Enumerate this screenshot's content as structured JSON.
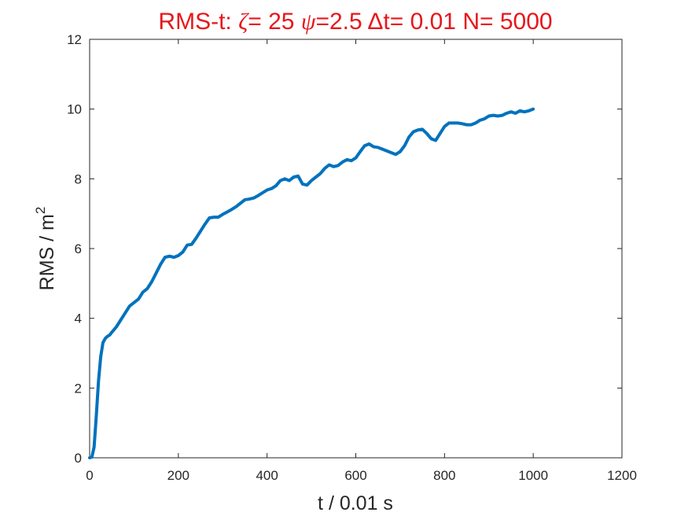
{
  "chart_data": {
    "type": "line",
    "title": {
      "prefix": "RMS-t:  ",
      "zeta_symbol": "ζ",
      "zeta_text": "= 25 ",
      "psi_symbol": "ψ",
      "psi_text": "=2.5 ",
      "delta_symbol": "Δ",
      "delta_text": "t= 0.01 N= 5000"
    },
    "title_color": "#e8161b",
    "xlabel": "t / 0.01 s",
    "ylabel": {
      "text": "RMS / m",
      "superscript": "2"
    },
    "xlim": [
      0,
      1200
    ],
    "ylim": [
      0,
      12
    ],
    "xticks": [
      0,
      200,
      400,
      600,
      800,
      1000,
      1200
    ],
    "yticks": [
      0,
      2,
      4,
      6,
      8,
      10,
      12
    ],
    "grid": false,
    "line_color": "#0072bd",
    "series": [
      {
        "x": [
          0,
          5,
          10,
          15,
          20,
          25,
          30,
          35,
          40,
          45,
          50,
          60,
          70,
          80,
          90,
          100,
          110,
          120,
          130,
          140,
          150,
          160,
          170,
          180,
          190,
          200,
          210,
          220,
          230,
          240,
          250,
          260,
          270,
          280,
          290,
          300,
          310,
          320,
          330,
          340,
          350,
          360,
          370,
          380,
          390,
          400,
          410,
          420,
          430,
          440,
          450,
          460,
          470,
          480,
          490,
          500,
          510,
          520,
          530,
          540,
          550,
          560,
          570,
          580,
          590,
          600,
          610,
          620,
          630,
          640,
          650,
          660,
          670,
          680,
          690,
          700,
          710,
          720,
          730,
          740,
          750,
          760,
          770,
          780,
          790,
          800,
          810,
          820,
          830,
          840,
          850,
          860,
          870,
          880,
          890,
          900,
          910,
          920,
          930,
          940,
          950,
          960,
          970,
          980,
          990,
          1000
        ],
        "y": [
          0.0,
          0.02,
          0.3,
          1.2,
          2.2,
          2.9,
          3.3,
          3.42,
          3.48,
          3.52,
          3.6,
          3.75,
          3.95,
          4.15,
          4.35,
          4.45,
          4.55,
          4.75,
          4.85,
          5.05,
          5.3,
          5.55,
          5.75,
          5.78,
          5.75,
          5.8,
          5.9,
          6.1,
          6.12,
          6.3,
          6.5,
          6.7,
          6.88,
          6.9,
          6.9,
          6.98,
          7.05,
          7.12,
          7.2,
          7.3,
          7.4,
          7.42,
          7.45,
          7.52,
          7.6,
          7.68,
          7.72,
          7.8,
          7.95,
          8.0,
          7.95,
          8.05,
          8.08,
          7.85,
          7.82,
          7.95,
          8.05,
          8.15,
          8.3,
          8.4,
          8.35,
          8.38,
          8.48,
          8.55,
          8.52,
          8.6,
          8.78,
          8.95,
          9.0,
          8.92,
          8.9,
          8.85,
          8.8,
          8.75,
          8.7,
          8.78,
          8.95,
          9.2,
          9.35,
          9.4,
          9.42,
          9.3,
          9.15,
          9.1,
          9.3,
          9.5,
          9.6,
          9.6,
          9.6,
          9.58,
          9.55,
          9.55,
          9.6,
          9.68,
          9.72,
          9.8,
          9.82,
          9.8,
          9.82,
          9.88,
          9.92,
          9.88,
          9.95,
          9.92,
          9.95,
          10.0
        ]
      }
    ]
  }
}
